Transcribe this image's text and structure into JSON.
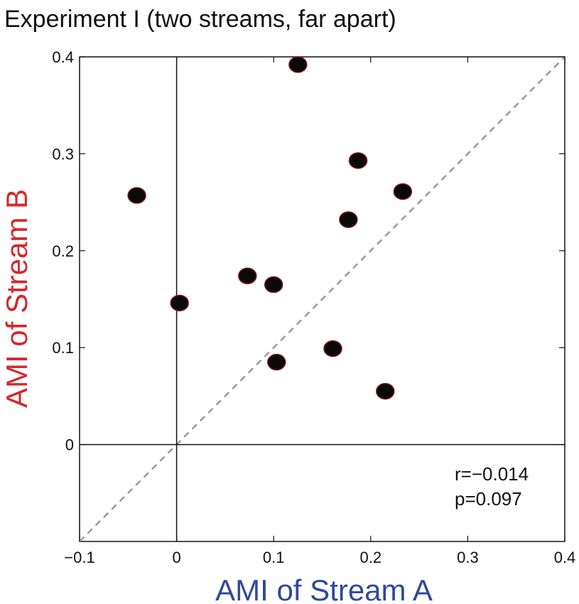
{
  "chart_data": {
    "type": "scatter",
    "title": "Experiment I (two streams, far apart)",
    "xlabel": "AMI of Stream A",
    "ylabel": "AMI of Stream B",
    "xlim": [
      -0.1,
      0.4
    ],
    "ylim": [
      -0.1,
      0.4
    ],
    "x_ticks": [
      {
        "value": -0.1,
        "label": "−0.1"
      },
      {
        "value": 0,
        "label": "0"
      },
      {
        "value": 0.1,
        "label": "0.1"
      },
      {
        "value": 0.2,
        "label": "0.2"
      },
      {
        "value": 0.3,
        "label": "0.3"
      },
      {
        "value": 0.4,
        "label": "0.4"
      }
    ],
    "y_ticks": [
      {
        "value": 0,
        "label": "0"
      },
      {
        "value": 0.1,
        "label": "0.1"
      },
      {
        "value": 0.2,
        "label": "0.2"
      },
      {
        "value": 0.3,
        "label": "0.3"
      },
      {
        "value": 0.4,
        "label": "0.4"
      }
    ],
    "reference_lines": {
      "x_zero": true,
      "y_zero": true,
      "diagonal_identity": true,
      "diagonal_style": "dashed"
    },
    "grid": false,
    "points": [
      {
        "x": 0.125,
        "y": 0.392
      },
      {
        "x": 0.187,
        "y": 0.293
      },
      {
        "x": 0.233,
        "y": 0.261
      },
      {
        "x": 0.177,
        "y": 0.232
      },
      {
        "x": -0.041,
        "y": 0.257
      },
      {
        "x": 0.073,
        "y": 0.174
      },
      {
        "x": 0.1,
        "y": 0.165
      },
      {
        "x": 0.003,
        "y": 0.146
      },
      {
        "x": 0.161,
        "y": 0.099
      },
      {
        "x": 0.103,
        "y": 0.085
      },
      {
        "x": 0.215,
        "y": 0.055
      }
    ],
    "annotations": [
      "r=−0.014",
      "p=0.097"
    ],
    "colors": {
      "ylabel": "#d7262b",
      "xlabel": "#2e4a9a",
      "point_fill": "#0a0a0a",
      "point_edge": "#7a1c1c",
      "diagonal": "#999999",
      "axes": "#111111"
    }
  }
}
